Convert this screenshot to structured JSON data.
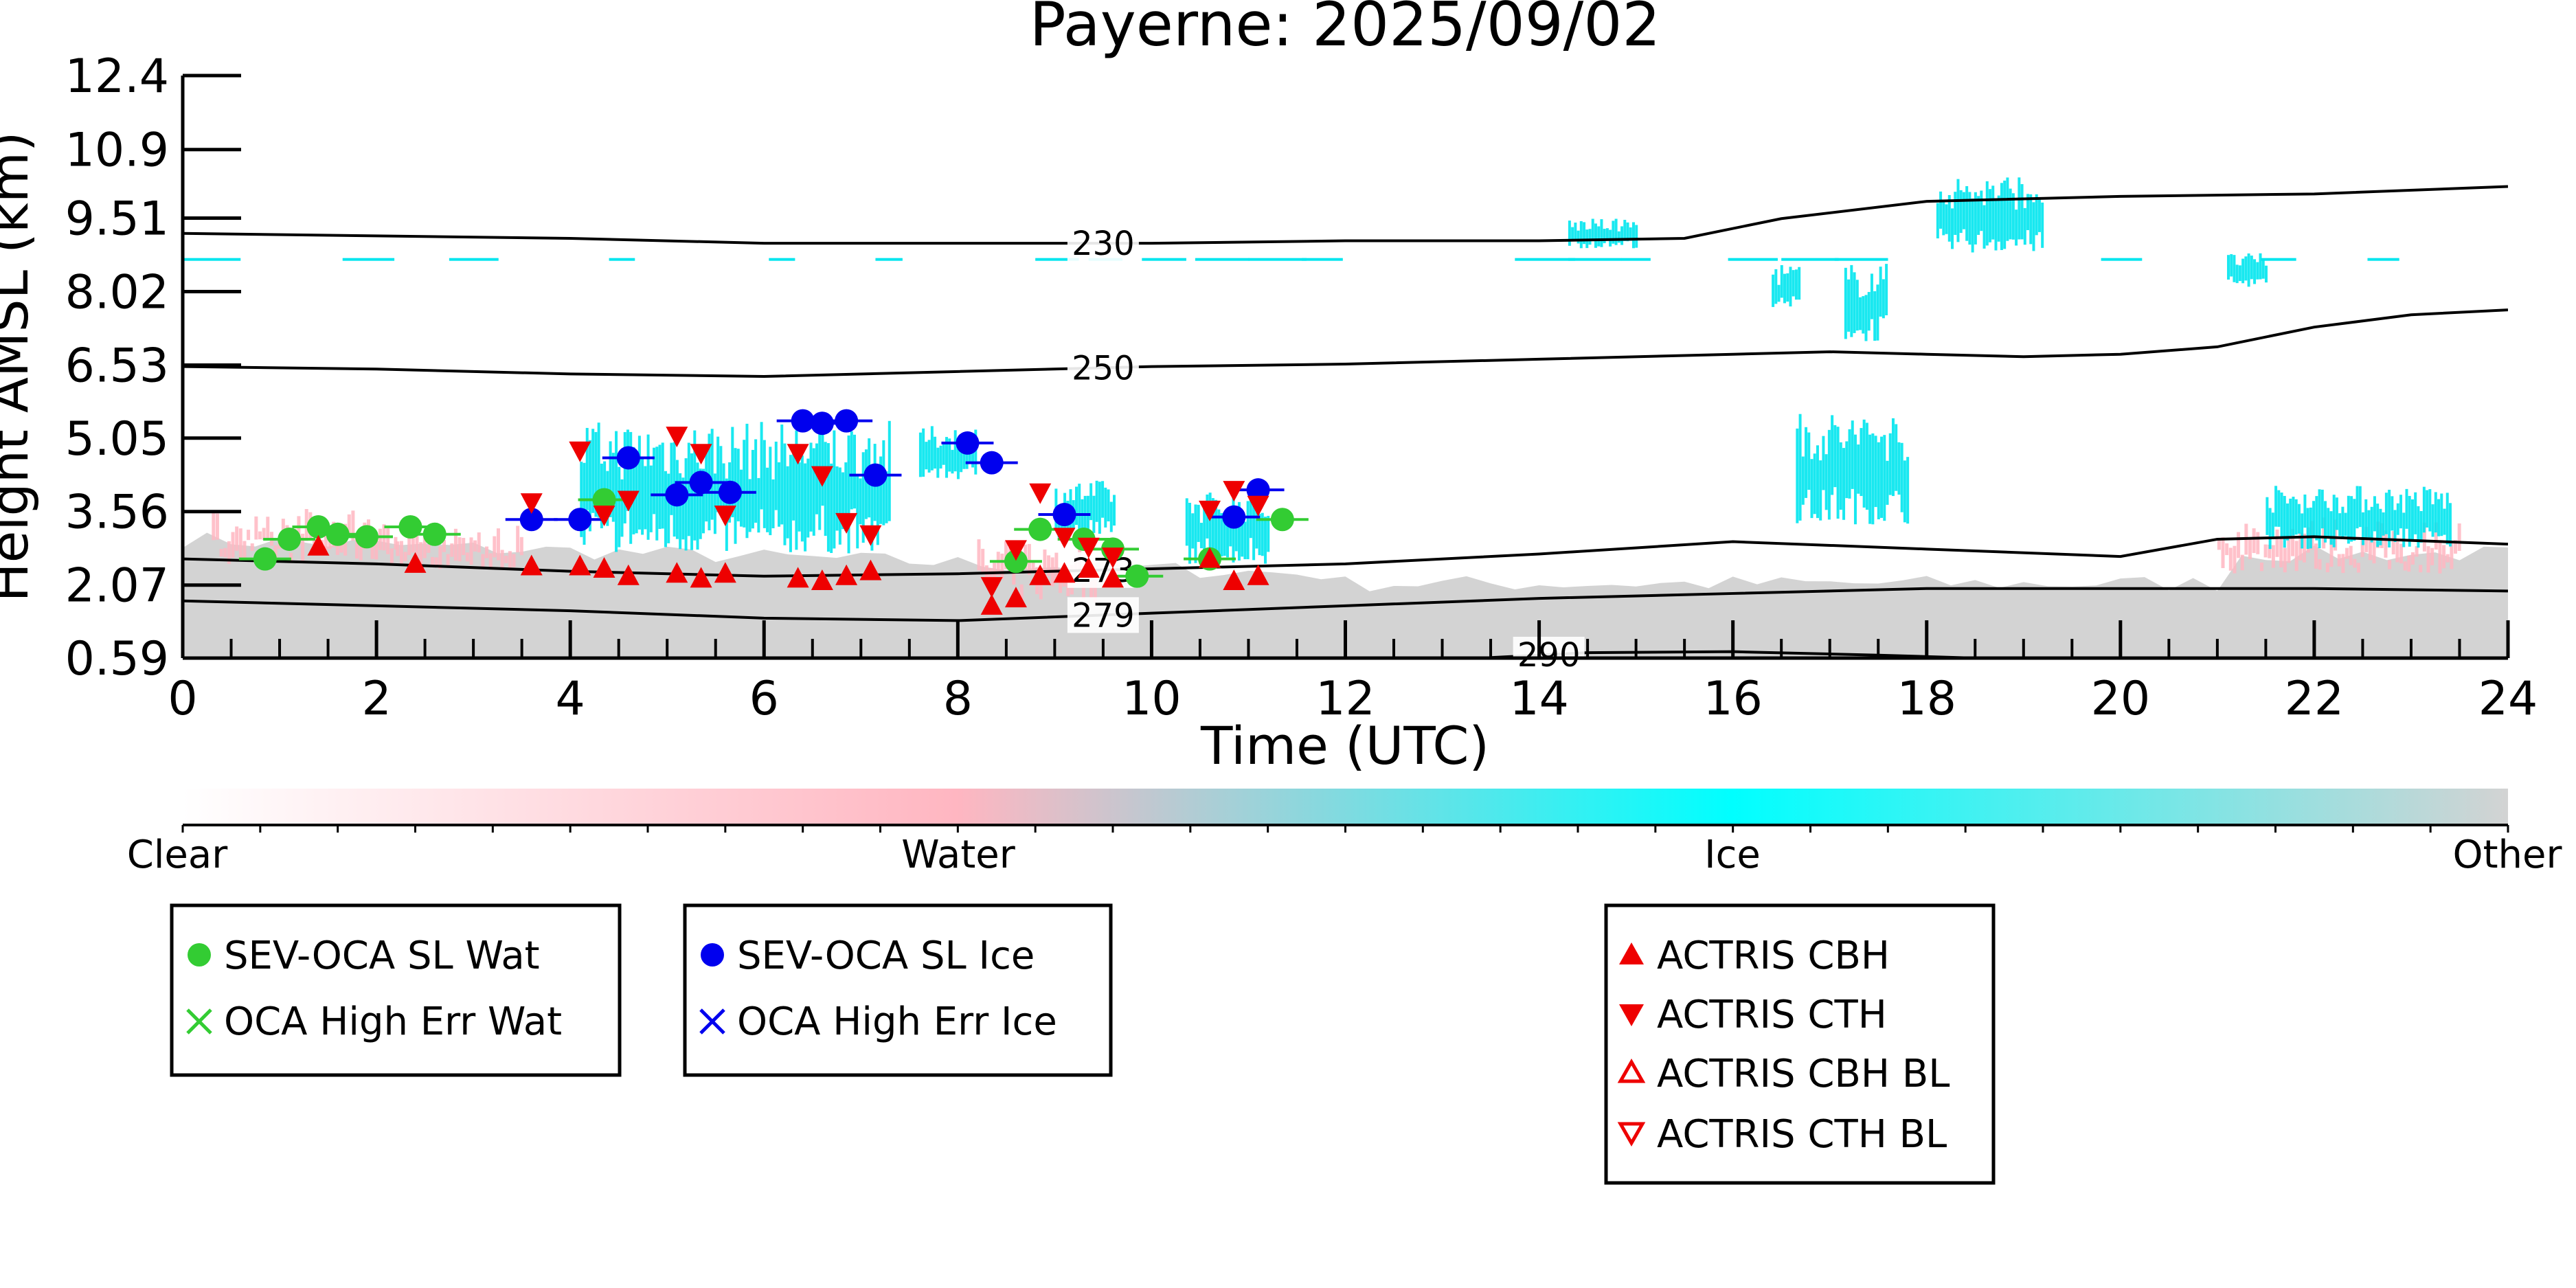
{
  "chart_data": {
    "type": "scatter",
    "title": "Payerne: 2025/09/02",
    "xlabel": "Time (UTC)",
    "ylabel": "Height AMSL (km)",
    "xlim": [
      0,
      24
    ],
    "ylim": [
      0.59,
      12.4
    ],
    "x_ticks": [
      0,
      2,
      4,
      6,
      8,
      10,
      12,
      14,
      16,
      18,
      20,
      22,
      24
    ],
    "y_ticks": [
      "0.59",
      "2.07",
      "3.56",
      "5.05",
      "6.53",
      "8.02",
      "9.51",
      "10.9",
      "12.4"
    ],
    "grid": false,
    "colorbar": {
      "labels": [
        "Clear",
        "Water",
        "Ice",
        "Other"
      ],
      "colors": [
        "#ffffff",
        "#ffb6c1",
        "#00ffff",
        "#d3d3d3"
      ]
    },
    "temperature_contours": [
      {
        "label": "230",
        "label_x": 9.5,
        "points": [
          [
            0,
            9.2
          ],
          [
            2,
            9.15
          ],
          [
            4,
            9.1
          ],
          [
            6,
            9.0
          ],
          [
            8,
            9.0
          ],
          [
            10,
            9.0
          ],
          [
            12,
            9.05
          ],
          [
            14,
            9.05
          ],
          [
            15.5,
            9.1
          ],
          [
            16.5,
            9.5
          ],
          [
            18,
            9.85
          ],
          [
            20,
            9.95
          ],
          [
            22,
            10.0
          ],
          [
            24,
            10.15
          ]
        ]
      },
      {
        "label": "250",
        "label_x": 9.5,
        "points": [
          [
            0,
            6.5
          ],
          [
            2,
            6.45
          ],
          [
            4,
            6.35
          ],
          [
            6,
            6.3
          ],
          [
            8,
            6.4
          ],
          [
            10,
            6.5
          ],
          [
            12,
            6.55
          ],
          [
            14,
            6.65
          ],
          [
            16,
            6.75
          ],
          [
            17,
            6.8
          ],
          [
            18,
            6.75
          ],
          [
            19,
            6.7
          ],
          [
            20,
            6.75
          ],
          [
            21,
            6.9
          ],
          [
            22,
            7.3
          ],
          [
            23,
            7.55
          ],
          [
            24,
            7.65
          ]
        ]
      },
      {
        "label": "273",
        "label_x": 9.5,
        "points": [
          [
            0,
            2.6
          ],
          [
            2,
            2.5
          ],
          [
            4,
            2.35
          ],
          [
            6,
            2.25
          ],
          [
            8,
            2.3
          ],
          [
            10,
            2.4
          ],
          [
            12,
            2.5
          ],
          [
            14,
            2.7
          ],
          [
            16,
            2.95
          ],
          [
            18,
            2.8
          ],
          [
            20,
            2.65
          ],
          [
            21,
            3.0
          ],
          [
            22,
            3.05
          ],
          [
            24,
            2.9
          ]
        ]
      },
      {
        "label": "279",
        "label_x": 9.5,
        "points": [
          [
            0,
            1.75
          ],
          [
            2,
            1.65
          ],
          [
            4,
            1.55
          ],
          [
            6,
            1.4
          ],
          [
            8,
            1.35
          ],
          [
            10,
            1.5
          ],
          [
            12,
            1.65
          ],
          [
            14,
            1.8
          ],
          [
            16,
            1.9
          ],
          [
            18,
            2.0
          ],
          [
            20,
            2.0
          ],
          [
            22,
            2.0
          ],
          [
            24,
            1.95
          ]
        ]
      },
      {
        "label": "290",
        "label_x": 14.1,
        "points": [
          [
            13.5,
            0.6
          ],
          [
            14.5,
            0.7
          ],
          [
            16,
            0.72
          ],
          [
            17.5,
            0.65
          ],
          [
            18.5,
            0.59
          ]
        ]
      }
    ],
    "series": [
      {
        "name": "SEV-OCA SL Wat",
        "color": "#33cc33",
        "marker": "circle",
        "x": [
          0.85,
          1.1,
          1.4,
          1.6,
          1.9,
          2.35,
          2.6,
          4.35,
          8.6,
          8.85,
          9.3,
          9.6,
          9.85,
          10.6,
          11.35
        ],
        "y": [
          2.6,
          3.0,
          3.25,
          3.1,
          3.05,
          3.25,
          3.1,
          3.8,
          2.55,
          3.2,
          3.0,
          2.8,
          2.25,
          2.6,
          3.4
        ]
      },
      {
        "name": "SEV-OCA SL Ice",
        "color": "#0000ee",
        "marker": "circle",
        "x": [
          3.6,
          4.1,
          4.6,
          5.1,
          5.35,
          5.65,
          6.4,
          6.6,
          6.85,
          7.15,
          8.1,
          8.35,
          9.1,
          10.85,
          11.1
        ],
        "y": [
          3.4,
          3.4,
          4.65,
          3.9,
          4.15,
          3.95,
          5.4,
          5.35,
          5.4,
          4.3,
          4.95,
          4.55,
          3.5,
          3.45,
          4.0
        ]
      },
      {
        "name": "OCA High Err Wat",
        "color": "#33cc33",
        "marker": "x",
        "x": [],
        "y": []
      },
      {
        "name": "OCA High Err Ice",
        "color": "#0000ee",
        "marker": "x",
        "x": [],
        "y": []
      },
      {
        "name": "ACTRIS CBH",
        "color": "#ee0000",
        "marker": "triangle-up",
        "x": [
          1.4,
          2.4,
          3.6,
          4.1,
          4.35,
          4.6,
          5.1,
          5.35,
          5.6,
          6.35,
          6.6,
          6.85,
          7.1,
          8.35,
          8.6,
          8.85,
          9.1,
          9.35,
          9.6,
          10.6,
          10.85,
          11.1
        ],
        "y": [
          2.85,
          2.5,
          2.45,
          2.45,
          2.4,
          2.25,
          2.3,
          2.2,
          2.3,
          2.2,
          2.15,
          2.25,
          2.35,
          1.65,
          1.8,
          2.25,
          2.3,
          2.4,
          2.2,
          2.6,
          2.15,
          2.25
        ]
      },
      {
        "name": "ACTRIS CTH",
        "color": "#ee0000",
        "marker": "triangle-down",
        "x": [
          3.6,
          4.1,
          4.35,
          4.6,
          5.1,
          5.35,
          5.6,
          6.35,
          6.6,
          6.85,
          7.1,
          8.35,
          8.6,
          8.85,
          9.1,
          9.35,
          9.6,
          10.6,
          10.85,
          11.1
        ],
        "y": [
          3.75,
          4.8,
          3.5,
          3.8,
          5.1,
          4.75,
          3.5,
          4.75,
          4.3,
          3.35,
          3.1,
          2.05,
          2.8,
          3.95,
          3.05,
          2.85,
          2.65,
          3.6,
          4.0,
          3.7
        ]
      },
      {
        "name": "ACTRIS CBH BL",
        "color": "#ee0000",
        "marker": "triangle-up-open",
        "x": [],
        "y": []
      },
      {
        "name": "ACTRIS CTH BL",
        "color": "#ee0000",
        "marker": "triangle-down-open",
        "x": [],
        "y": []
      }
    ],
    "legends": [
      {
        "entries": [
          "SEV-OCA SL Wat",
          "OCA High Err Wat"
        ]
      },
      {
        "entries": [
          "SEV-OCA SL Ice",
          "OCA High Err Ice"
        ]
      },
      {
        "entries": [
          "ACTRIS CBH",
          "ACTRIS CTH",
          "ACTRIS CBH BL",
          "ACTRIS CTH BL"
        ]
      }
    ]
  }
}
